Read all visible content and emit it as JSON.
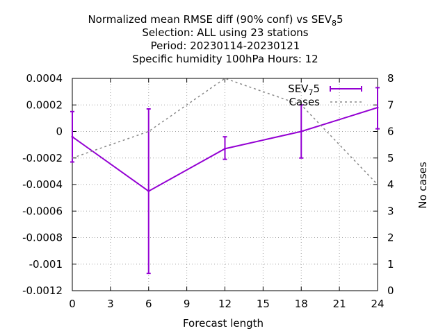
{
  "chart_data": {
    "type": "line",
    "title_lines": [
      "Normalized mean RMSE diff (90% conf) vs SEV",
      "Selection: ALL using    23 stations",
      "Period: 20230114-20230121",
      "Specific humidity 100hPa   Hours:  12"
    ],
    "title_ref_sub": "8",
    "title_ref_tail": "5",
    "xlabel": "Forecast length",
    "ylabel": "",
    "y2label": "No cases",
    "xlim": [
      0,
      24
    ],
    "ylim": [
      -0.0012,
      0.0004
    ],
    "y2lim": [
      0,
      8
    ],
    "xticks": [
      0,
      3,
      6,
      9,
      12,
      15,
      18,
      21,
      24
    ],
    "xtick_labels": [
      "0",
      "3",
      "6",
      "9",
      "12",
      "15",
      "18",
      "21",
      "24"
    ],
    "yticks": [
      0.0004,
      0.0002,
      0,
      -0.0002,
      -0.0004,
      -0.0006,
      -0.0008,
      -0.001,
      -0.0012
    ],
    "ytick_labels": [
      "0.0004",
      "0.0002",
      "0",
      "-0.0002",
      "-0.0004",
      "-0.0006",
      "-0.0008",
      "-0.001",
      "-0.0012"
    ],
    "y2ticks": [
      8,
      7,
      6,
      5,
      4,
      3,
      2,
      1,
      0
    ],
    "y2tick_labels": [
      "8",
      "7",
      "6",
      "5",
      "4",
      "3",
      "2",
      "1",
      "0"
    ],
    "grid": true,
    "legend_position": "top-right",
    "series": [
      {
        "name": "SEV",
        "name_sub": "7",
        "name_tail": "5",
        "axis": "y",
        "style": "line-errorbars",
        "color": "#9400d3",
        "x": [
          0,
          6,
          12,
          18,
          24
        ],
        "y": [
          -4e-05,
          -0.00045,
          -0.00013,
          0.0,
          0.00018
        ],
        "err_low": [
          -0.00023,
          -0.00107,
          -0.00021,
          -0.0002,
          2e-05
        ],
        "err_high": [
          0.00015,
          0.00017,
          -4e-05,
          0.0002,
          0.00033
        ]
      },
      {
        "name": "Cases",
        "axis": "y2",
        "style": "dashed",
        "color": "#888888",
        "x": [
          0,
          6,
          12,
          18,
          24
        ],
        "y": [
          5,
          6,
          8,
          7,
          4
        ]
      }
    ]
  }
}
